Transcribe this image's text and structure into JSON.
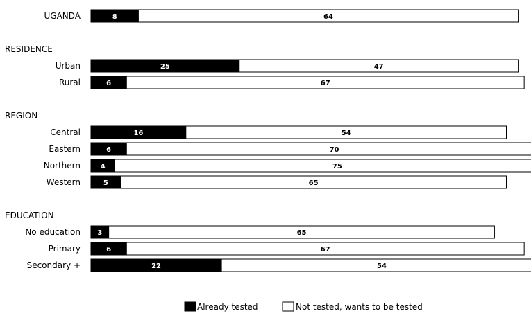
{
  "chart_data": {
    "type": "bar",
    "orientation": "horizontal",
    "stacked": true,
    "groups": [
      {
        "heading": "",
        "rows": [
          {
            "label": "UGANDA",
            "already": 8,
            "wants": 64
          }
        ]
      },
      {
        "heading": "RESIDENCE",
        "rows": [
          {
            "label": "Urban",
            "already": 25,
            "wants": 47
          },
          {
            "label": "Rural",
            "already": 6,
            "wants": 67
          }
        ]
      },
      {
        "heading": "REGION",
        "rows": [
          {
            "label": "Central",
            "already": 16,
            "wants": 54
          },
          {
            "label": "Eastern",
            "already": 6,
            "wants": 70
          },
          {
            "label": "Northern",
            "already": 4,
            "wants": 75
          },
          {
            "label": "Western",
            "already": 5,
            "wants": 65
          }
        ]
      },
      {
        "heading": "EDUCATION",
        "rows": [
          {
            "label": "No education",
            "already": 3,
            "wants": 65
          },
          {
            "label": "Primary",
            "already": 6,
            "wants": 67
          },
          {
            "label": "Secondary +",
            "already": 22,
            "wants": 54
          }
        ]
      }
    ],
    "series": [
      {
        "name": "Already tested",
        "color": "#000000"
      },
      {
        "name": "Not tested, wants to be tested",
        "color": "#ffffff"
      }
    ],
    "legend_placement": "bottom-right",
    "grid": false
  }
}
